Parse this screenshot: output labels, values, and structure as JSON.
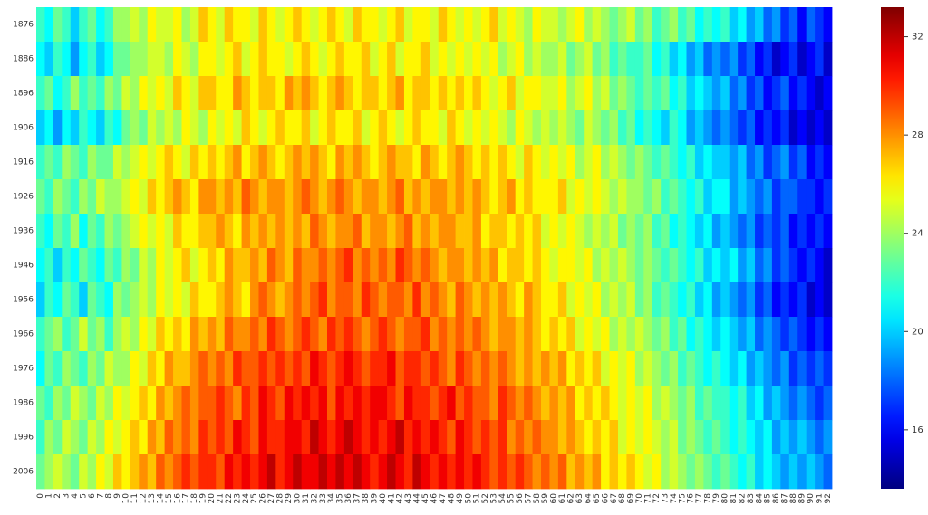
{
  "chart_data": {
    "type": "heatmap",
    "x": [
      0,
      1,
      2,
      3,
      4,
      5,
      6,
      7,
      8,
      9,
      10,
      11,
      12,
      13,
      14,
      15,
      16,
      17,
      18,
      19,
      20,
      21,
      22,
      23,
      24,
      25,
      26,
      27,
      28,
      29,
      30,
      31,
      32,
      33,
      34,
      35,
      36,
      37,
      38,
      39,
      40,
      41,
      42,
      43,
      44,
      45,
      46,
      47,
      48,
      49,
      50,
      51,
      52,
      53,
      54,
      55,
      56,
      57,
      58,
      59,
      60,
      61,
      62,
      63,
      64,
      65,
      66,
      67,
      68,
      69,
      70,
      71,
      72,
      73,
      74,
      75,
      76,
      77,
      78,
      79,
      80,
      81,
      82,
      83,
      84,
      85,
      86,
      87,
      88,
      89,
      90,
      91,
      92
    ],
    "y": [
      1876,
      1886,
      1896,
      1906,
      1916,
      1926,
      1936,
      1946,
      1956,
      1966,
      1976,
      1986,
      1996,
      2006
    ],
    "values": [
      [
        22,
        21,
        23,
        22,
        20,
        22,
        23,
        21,
        22,
        24,
        24,
        25,
        24,
        26,
        25,
        25,
        26,
        24,
        25,
        27,
        26,
        25,
        27,
        26,
        26,
        25,
        27,
        26,
        25,
        26,
        27,
        26,
        25,
        26,
        27,
        26,
        25,
        27,
        26,
        26,
        25,
        26,
        27,
        25,
        26,
        26,
        25,
        27,
        26,
        25,
        26,
        25,
        26,
        27,
        25,
        26,
        25,
        24,
        26,
        25,
        25,
        24,
        25,
        26,
        24,
        25,
        24,
        23,
        24,
        25,
        23,
        24,
        22,
        23,
        24,
        22,
        23,
        21,
        22,
        21,
        22,
        20,
        21,
        19,
        20,
        18,
        19,
        17,
        18,
        16,
        18,
        17,
        16
      ],
      [
        21,
        20,
        22,
        21,
        19,
        21,
        22,
        20,
        21,
        23,
        23,
        24,
        24,
        25,
        25,
        24,
        26,
        25,
        24,
        26,
        26,
        25,
        26,
        27,
        25,
        26,
        27,
        26,
        26,
        25,
        26,
        27,
        26,
        25,
        26,
        27,
        26,
        26,
        27,
        25,
        26,
        27,
        25,
        26,
        26,
        27,
        25,
        26,
        25,
        26,
        25,
        26,
        25,
        26,
        24,
        25,
        26,
        24,
        25,
        24,
        24,
        25,
        23,
        24,
        25,
        23,
        24,
        22,
        23,
        22,
        22,
        23,
        21,
        22,
        20,
        21,
        19,
        20,
        18,
        19,
        18,
        19,
        17,
        18,
        16,
        17,
        15,
        16,
        17,
        15,
        16,
        17,
        15
      ],
      [
        22,
        23,
        21,
        22,
        24,
        22,
        23,
        22,
        24,
        23,
        25,
        24,
        26,
        25,
        26,
        25,
        27,
        26,
        25,
        27,
        27,
        26,
        26,
        28,
        27,
        26,
        27,
        27,
        26,
        28,
        27,
        28,
        27,
        26,
        27,
        28,
        27,
        26,
        27,
        27,
        26,
        27,
        28,
        26,
        27,
        27,
        26,
        27,
        26,
        27,
        26,
        27,
        26,
        25,
        26,
        27,
        25,
        26,
        26,
        25,
        25,
        26,
        24,
        25,
        26,
        24,
        25,
        23,
        24,
        23,
        22,
        23,
        22,
        23,
        21,
        22,
        20,
        21,
        20,
        19,
        20,
        18,
        19,
        17,
        18,
        16,
        17,
        18,
        16,
        17,
        16,
        15,
        16
      ],
      [
        20,
        21,
        19,
        21,
        20,
        22,
        21,
        20,
        22,
        21,
        23,
        24,
        23,
        25,
        24,
        25,
        24,
        26,
        25,
        24,
        26,
        25,
        26,
        25,
        27,
        26,
        25,
        26,
        27,
        26,
        26,
        27,
        25,
        26,
        27,
        26,
        26,
        27,
        25,
        26,
        27,
        26,
        25,
        26,
        27,
        26,
        26,
        25,
        27,
        26,
        25,
        26,
        25,
        26,
        25,
        24,
        26,
        25,
        24,
        25,
        24,
        25,
        24,
        23,
        25,
        24,
        23,
        24,
        22,
        23,
        21,
        22,
        21,
        20,
        22,
        21,
        19,
        20,
        19,
        18,
        19,
        18,
        17,
        18,
        16,
        17,
        16,
        17,
        15,
        16,
        15,
        16,
        15
      ],
      [
        22,
        23,
        22,
        24,
        23,
        22,
        24,
        23,
        23,
        25,
        24,
        25,
        26,
        25,
        26,
        27,
        26,
        25,
        27,
        26,
        27,
        26,
        27,
        28,
        26,
        27,
        28,
        27,
        26,
        27,
        28,
        27,
        28,
        27,
        26,
        28,
        27,
        28,
        27,
        26,
        27,
        28,
        27,
        27,
        26,
        28,
        27,
        26,
        27,
        28,
        27,
        26,
        27,
        26,
        27,
        26,
        25,
        27,
        26,
        25,
        26,
        25,
        26,
        24,
        25,
        26,
        24,
        25,
        24,
        23,
        24,
        23,
        22,
        23,
        22,
        21,
        22,
        20,
        21,
        20,
        20,
        19,
        20,
        18,
        19,
        17,
        18,
        19,
        17,
        18,
        16,
        17,
        16
      ],
      [
        23,
        22,
        24,
        23,
        22,
        24,
        23,
        25,
        24,
        24,
        25,
        26,
        25,
        27,
        26,
        27,
        28,
        27,
        26,
        28,
        28,
        27,
        28,
        27,
        29,
        28,
        27,
        28,
        28,
        27,
        28,
        29,
        28,
        27,
        28,
        29,
        28,
        27,
        28,
        28,
        27,
        28,
        29,
        27,
        28,
        27,
        28,
        28,
        27,
        28,
        27,
        28,
        27,
        26,
        27,
        28,
        26,
        27,
        26,
        26,
        26,
        27,
        25,
        26,
        25,
        26,
        25,
        24,
        25,
        24,
        24,
        23,
        24,
        22,
        23,
        22,
        21,
        22,
        20,
        21,
        21,
        19,
        20,
        19,
        18,
        19,
        17,
        18,
        18,
        17,
        17,
        16,
        17
      ],
      [
        22,
        21,
        23,
        22,
        24,
        21,
        23,
        22,
        24,
        23,
        24,
        25,
        26,
        25,
        26,
        25,
        27,
        26,
        26,
        27,
        27,
        28,
        27,
        26,
        28,
        27,
        28,
        27,
        28,
        27,
        28,
        27,
        29,
        28,
        27,
        28,
        28,
        29,
        27,
        28,
        28,
        27,
        28,
        29,
        27,
        28,
        27,
        28,
        28,
        27,
        27,
        28,
        26,
        27,
        27,
        26,
        27,
        26,
        27,
        25,
        26,
        25,
        26,
        25,
        24,
        25,
        24,
        25,
        23,
        24,
        23,
        24,
        22,
        23,
        21,
        22,
        21,
        20,
        21,
        19,
        20,
        19,
        18,
        19,
        17,
        18,
        17,
        18,
        16,
        17,
        16,
        17,
        16
      ],
      [
        21,
        22,
        20,
        22,
        21,
        23,
        22,
        21,
        23,
        22,
        24,
        23,
        25,
        24,
        26,
        25,
        26,
        27,
        25,
        26,
        27,
        26,
        28,
        27,
        27,
        28,
        27,
        29,
        28,
        27,
        29,
        28,
        28,
        29,
        28,
        29,
        30,
        28,
        29,
        28,
        29,
        28,
        30,
        29,
        28,
        29,
        28,
        27,
        28,
        28,
        27,
        28,
        27,
        28,
        26,
        27,
        27,
        26,
        27,
        26,
        25,
        26,
        26,
        25,
        26,
        24,
        25,
        24,
        25,
        24,
        23,
        24,
        23,
        22,
        23,
        22,
        21,
        22,
        20,
        21,
        20,
        21,
        19,
        20,
        18,
        19,
        17,
        18,
        17,
        16,
        17,
        16,
        15
      ],
      [
        20,
        22,
        21,
        23,
        22,
        20,
        23,
        22,
        21,
        24,
        23,
        24,
        25,
        24,
        26,
        25,
        26,
        25,
        27,
        26,
        26,
        27,
        28,
        27,
        26,
        28,
        29,
        28,
        27,
        28,
        29,
        28,
        29,
        30,
        28,
        29,
        29,
        28,
        30,
        29,
        28,
        29,
        29,
        28,
        30,
        28,
        29,
        28,
        27,
        29,
        28,
        27,
        28,
        27,
        28,
        27,
        26,
        28,
        27,
        26,
        26,
        27,
        25,
        26,
        25,
        26,
        24,
        25,
        24,
        25,
        23,
        24,
        22,
        23,
        22,
        21,
        22,
        20,
        21,
        19,
        20,
        19,
        18,
        19,
        17,
        18,
        16,
        17,
        16,
        17,
        15,
        16,
        15
      ],
      [
        22,
        23,
        24,
        22,
        23,
        25,
        23,
        24,
        22,
        24,
        25,
        24,
        26,
        25,
        27,
        26,
        27,
        26,
        28,
        27,
        28,
        27,
        29,
        28,
        28,
        29,
        28,
        30,
        29,
        28,
        29,
        30,
        29,
        28,
        30,
        29,
        30,
        29,
        28,
        29,
        30,
        29,
        28,
        29,
        29,
        30,
        28,
        29,
        28,
        29,
        28,
        29,
        28,
        27,
        28,
        28,
        27,
        28,
        27,
        26,
        27,
        26,
        27,
        25,
        26,
        25,
        26,
        24,
        25,
        24,
        25,
        24,
        23,
        24,
        22,
        23,
        21,
        22,
        21,
        20,
        21,
        20,
        19,
        20,
        18,
        19,
        18,
        17,
        18,
        17,
        16,
        17,
        16
      ],
      [
        21,
        23,
        22,
        24,
        23,
        22,
        24,
        23,
        25,
        24,
        24,
        26,
        25,
        27,
        26,
        28,
        27,
        27,
        28,
        29,
        28,
        29,
        28,
        30,
        29,
        29,
        30,
        29,
        30,
        29,
        30,
        29,
        31,
        30,
        29,
        30,
        31,
        30,
        29,
        30,
        30,
        31,
        29,
        30,
        30,
        29,
        30,
        29,
        28,
        30,
        29,
        28,
        29,
        28,
        29,
        28,
        27,
        28,
        27,
        28,
        27,
        28,
        26,
        27,
        26,
        27,
        25,
        26,
        25,
        26,
        24,
        25,
        24,
        23,
        24,
        22,
        23,
        22,
        21,
        22,
        21,
        20,
        21,
        19,
        20,
        19,
        18,
        19,
        17,
        18,
        17,
        18,
        17
      ],
      [
        23,
        22,
        24,
        23,
        25,
        24,
        23,
        25,
        24,
        26,
        25,
        26,
        27,
        26,
        28,
        27,
        28,
        29,
        28,
        29,
        29,
        30,
        29,
        28,
        30,
        29,
        31,
        30,
        29,
        31,
        30,
        31,
        30,
        31,
        29,
        31,
        30,
        31,
        30,
        31,
        31,
        30,
        29,
        31,
        30,
        30,
        29,
        30,
        31,
        29,
        30,
        29,
        29,
        28,
        30,
        29,
        28,
        29,
        28,
        27,
        28,
        27,
        28,
        26,
        27,
        26,
        27,
        26,
        25,
        26,
        25,
        26,
        24,
        25,
        24,
        23,
        24,
        22,
        23,
        22,
        22,
        21,
        22,
        20,
        21,
        19,
        20,
        19,
        18,
        19,
        18,
        17,
        18
      ],
      [
        22,
        24,
        23,
        25,
        24,
        23,
        25,
        24,
        26,
        25,
        26,
        27,
        26,
        28,
        27,
        29,
        28,
        29,
        28,
        30,
        29,
        30,
        29,
        31,
        30,
        29,
        31,
        30,
        30,
        31,
        31,
        30,
        32,
        31,
        30,
        31,
        32,
        31,
        30,
        31,
        30,
        31,
        32,
        30,
        31,
        30,
        31,
        30,
        29,
        31,
        30,
        29,
        30,
        29,
        30,
        28,
        29,
        28,
        29,
        28,
        28,
        27,
        28,
        27,
        26,
        27,
        26,
        27,
        25,
        26,
        25,
        26,
        25,
        24,
        25,
        23,
        24,
        23,
        22,
        23,
        22,
        21,
        22,
        21,
        20,
        21,
        19,
        20,
        19,
        20,
        19,
        18,
        19
      ],
      [
        23,
        24,
        25,
        24,
        23,
        25,
        24,
        26,
        25,
        27,
        26,
        27,
        28,
        27,
        29,
        28,
        29,
        30,
        29,
        30,
        30,
        29,
        31,
        30,
        31,
        30,
        31,
        32,
        30,
        31,
        32,
        31,
        31,
        32,
        31,
        32,
        31,
        32,
        31,
        30,
        31,
        32,
        31,
        30,
        32,
        31,
        30,
        31,
        30,
        31,
        30,
        31,
        30,
        29,
        30,
        29,
        30,
        29,
        28,
        29,
        28,
        29,
        27,
        28,
        27,
        28,
        26,
        27,
        26,
        27,
        26,
        25,
        26,
        24,
        25,
        24,
        23,
        24,
        23,
        22,
        23,
        22,
        21,
        22,
        20,
        21,
        20,
        19,
        20,
        19,
        20,
        19,
        18
      ]
    ],
    "zlim": [
      13.6,
      33.2
    ],
    "zticks": [
      16,
      20,
      24,
      28,
      32
    ],
    "colormap": "jet"
  }
}
